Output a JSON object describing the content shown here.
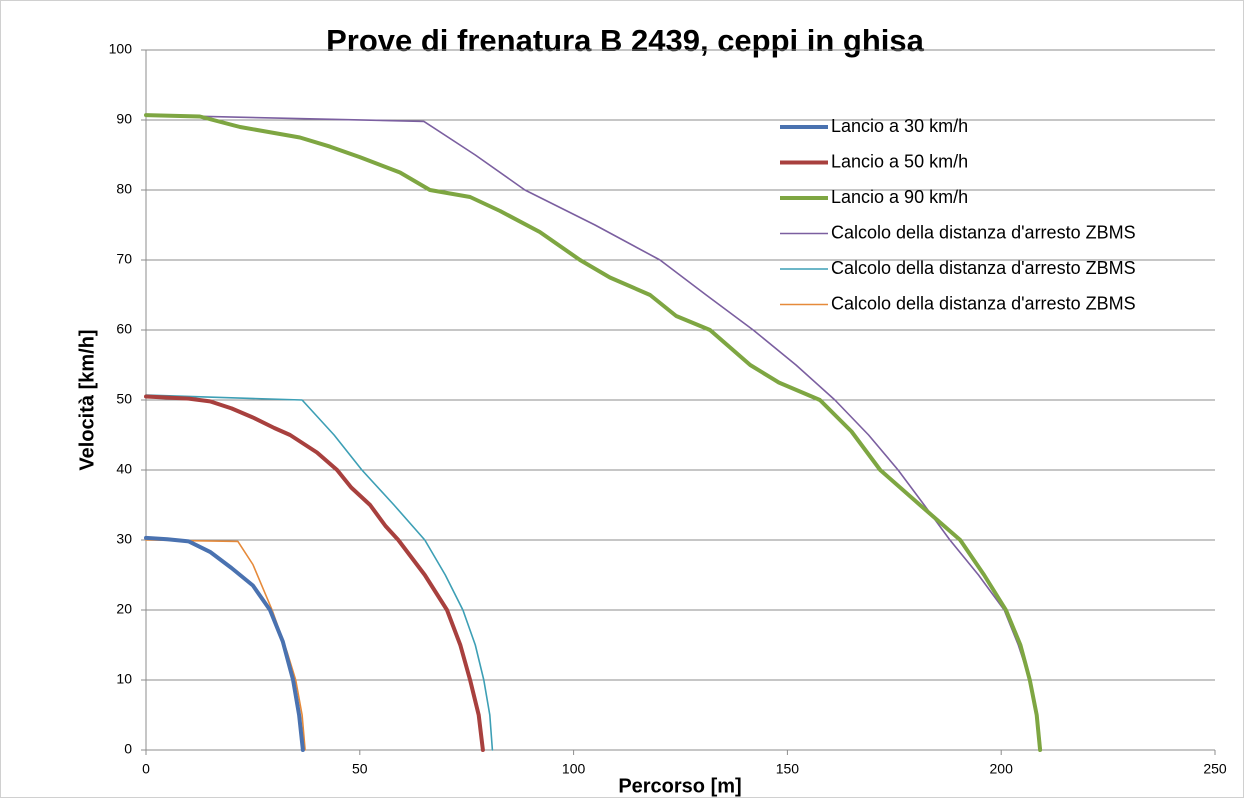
{
  "chart_data": {
    "type": "line",
    "title": "Prove di frenatura B 2439, ceppi in ghisa",
    "xlabel": "Percorso [m]",
    "ylabel": "Velocità [km/h]",
    "xlim": [
      0,
      250
    ],
    "xticks": [
      0,
      50,
      100,
      150,
      200,
      250
    ],
    "ylim": [
      0,
      100
    ],
    "yticks": [
      0,
      10,
      20,
      30,
      40,
      50,
      60,
      70,
      80,
      90,
      100
    ],
    "grid": true,
    "legend": "upper right",
    "series": [
      {
        "name": "Lancio a 30 km/h",
        "color": "#4a72b0",
        "line_width": 4,
        "x": [
          0,
          5,
          10,
          15,
          20,
          25,
          29,
          32,
          34.4,
          35.8,
          36.7
        ],
        "y": [
          30.3,
          30.1,
          29.8,
          28.3,
          26,
          23.5,
          20,
          15.5,
          10,
          5,
          0
        ]
      },
      {
        "name": "Lancio a 50 km/h",
        "color": "#a8403e",
        "line_width": 4,
        "x": [
          0,
          10,
          15,
          20,
          25,
          30,
          33.7,
          40,
          44.7,
          48,
          52.4,
          56,
          59,
          65.2,
          70.4,
          73.5,
          75.8,
          77.8,
          78.8
        ],
        "y": [
          50.5,
          50.2,
          49.8,
          48.8,
          47.5,
          46,
          45,
          42.5,
          40,
          37.5,
          35,
          32,
          30,
          25,
          20,
          15,
          10,
          5,
          0
        ]
      },
      {
        "name": "Lancio a 90  km/h",
        "color": "#7ea642",
        "line_width": 4,
        "x": [
          0,
          12.6,
          22,
          36,
          43,
          50,
          59.4,
          66.4,
          75.8,
          82.8,
          92.1,
          101.5,
          108.5,
          117.9,
          124,
          131.9,
          141.3,
          148,
          157.6,
          165,
          171.7,
          181,
          190.4,
          196,
          201.1,
          204.5,
          206.7,
          208.3,
          209.1
        ],
        "y": [
          90.7,
          90.5,
          89,
          87.5,
          86.2,
          84.7,
          82.5,
          80,
          79,
          77,
          74,
          70,
          67.5,
          65,
          62,
          60,
          55,
          52.5,
          50,
          45.5,
          40,
          35,
          30,
          25,
          20,
          15,
          10,
          5,
          0
        ]
      },
      {
        "name": "Calcolo della distanza d'arresto ZBMS",
        "color": "#7b5fa0",
        "line_width": 1.6,
        "x": [
          0,
          65,
          77,
          88.6,
          105,
          120.2,
          131,
          142,
          152,
          161.1,
          169,
          175.9,
          182,
          188,
          194.7,
          200.7,
          204,
          206.7,
          208.5,
          209.3
        ],
        "y": [
          90.7,
          89.8,
          85,
          80,
          75,
          70,
          65,
          60,
          55,
          50,
          45,
          40,
          35,
          30,
          25,
          20,
          15,
          10,
          5,
          0
        ]
      },
      {
        "name": "Calcolo della distanza d'arresto ZBMS",
        "color": "#3d9fb5",
        "line_width": 1.6,
        "x": [
          0,
          36.5,
          44,
          50.5,
          58,
          65.2,
          70,
          74.1,
          77,
          79,
          80.4,
          81
        ],
        "y": [
          50.7,
          50,
          45,
          40,
          35,
          30,
          25,
          20,
          15,
          10,
          5,
          0
        ]
      },
      {
        "name": "Calcolo della distanza d'arresto ZBMS",
        "color": "#e68a3a",
        "line_width": 1.6,
        "x": [
          0,
          21.5,
          25,
          29.5,
          33,
          35,
          36.5,
          37.2
        ],
        "y": [
          30,
          29.8,
          26.5,
          20,
          14,
          10,
          5,
          0
        ]
      }
    ]
  }
}
